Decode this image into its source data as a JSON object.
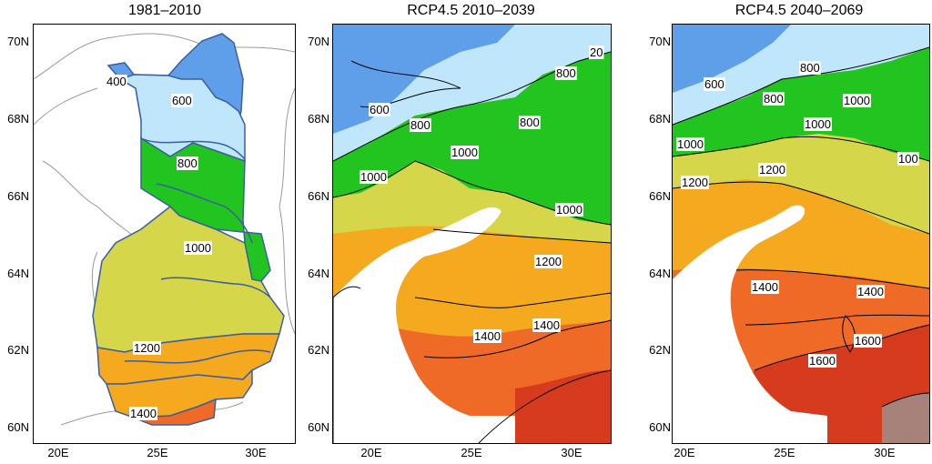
{
  "panels": [
    {
      "title": "1981–2010",
      "lat_labels": [
        "70N",
        "68N",
        "66N",
        "64N",
        "62N",
        "60N"
      ],
      "lon_labels": [
        "20E",
        "25E",
        "30E"
      ],
      "contour_labels": [
        "400",
        "600",
        "800",
        "1000",
        "1200",
        "1400"
      ]
    },
    {
      "title": "RCP4.5  2010–2039",
      "lat_labels": [
        "70N",
        "68N",
        "66N",
        "64N",
        "62N",
        "60N"
      ],
      "lon_labels": [
        "20E",
        "25E",
        "30E"
      ],
      "contour_labels": [
        "800",
        "600",
        "800",
        "800",
        "1000",
        "1000",
        "1000",
        "1200",
        "1400",
        "1400",
        "20"
      ]
    },
    {
      "title": "RCP4.5  2040–2069",
      "lat_labels": [
        "70N",
        "68N",
        "66N",
        "64N",
        "62N",
        "60N"
      ],
      "lon_labels": [
        "20E",
        "25E",
        "30E"
      ],
      "contour_labels": [
        "800",
        "600",
        "800",
        "1000",
        "1000",
        "1000",
        "1200",
        "100",
        "1200",
        "1400",
        "1400",
        "1600",
        "1600"
      ]
    }
  ],
  "colors": {
    "c400": "#5f9ee8",
    "c600": "#bfe6fb",
    "c800": "#22c51f",
    "c1000": "#d6d64a",
    "c1200": "#f4a91e",
    "c1400": "#ef6a26",
    "c1600": "#d63b1e",
    "c1800": "#a6827a",
    "land_outline": "#9a9a9a"
  }
}
